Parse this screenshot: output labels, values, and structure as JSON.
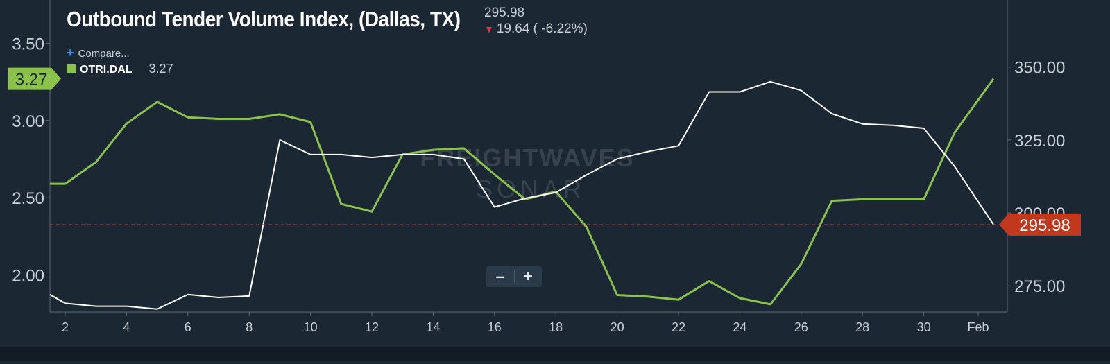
{
  "header": {
    "title": "Outbound Tender Volume Index, (Dallas, TX)",
    "value": "295.98",
    "change": "19.64 ( -6.22%)",
    "change_arrow_icon": "arrow-down-icon",
    "compare_label": "Compare...",
    "compare_icon": "plus-icon"
  },
  "legend": {
    "symbol": "OTRI.DAL",
    "value": "3.27",
    "color": "#8bc34a"
  },
  "watermark": {
    "line1": "FREIGHTWAVES",
    "line2": "SONAR"
  },
  "zoom": {
    "minus": "–",
    "plus": "+"
  },
  "colors": {
    "background": "#1b2733",
    "series_otri": "#8bc34a",
    "series_otvi": "#ffffff",
    "current_value_marker": "#c1381c",
    "reference_line": "#b33a2a"
  },
  "chart_data": {
    "type": "line",
    "x_tick_labels": [
      "2",
      "4",
      "6",
      "8",
      "10",
      "12",
      "14",
      "16",
      "18",
      "20",
      "22",
      "24",
      "26",
      "28",
      "30",
      "Feb"
    ],
    "y_left": {
      "ticks": [
        "2.00",
        "2.50",
        "3.00",
        "3.50"
      ],
      "range": [
        1.76,
        3.78
      ]
    },
    "y_right": {
      "ticks": [
        "275.00",
        "300.00",
        "325.00",
        "350.00"
      ],
      "range": [
        266,
        373
      ]
    },
    "current_marker_left": "3.27",
    "current_marker_right": "295.98",
    "series": [
      {
        "name": "OTRI.DAL",
        "axis": "left",
        "x": [
          1.5,
          2,
          3,
          4,
          5,
          6,
          7,
          8,
          9,
          10,
          11,
          12,
          13,
          14,
          15,
          16,
          17,
          18,
          19,
          20,
          21,
          22,
          23,
          24,
          25,
          26,
          27,
          28,
          29,
          30,
          31,
          32
        ],
        "values": [
          2.59,
          2.59,
          2.73,
          2.98,
          3.12,
          3.02,
          3.01,
          3.01,
          3.04,
          2.99,
          2.46,
          2.41,
          2.78,
          2.81,
          2.82,
          2.65,
          2.49,
          2.54,
          2.31,
          1.87,
          1.86,
          1.84,
          1.96,
          1.85,
          1.81,
          2.07,
          2.48,
          2.49,
          2.49,
          2.49,
          2.92,
          3.27
        ]
      },
      {
        "axis": "right",
        "x": [
          1.5,
          2,
          3,
          4,
          5,
          6,
          7,
          8,
          9,
          10,
          11,
          12,
          13,
          14,
          15,
          16,
          17,
          18,
          19,
          20,
          21,
          22,
          23,
          24,
          25,
          26,
          27,
          28,
          29,
          30,
          31,
          32
        ],
        "values": [
          272,
          269,
          268,
          268,
          267,
          272,
          271,
          271.5,
          325,
          320,
          320,
          319,
          320,
          320,
          318.5,
          302,
          305,
          307,
          313,
          318.5,
          321,
          323,
          341.5,
          341.5,
          345,
          342,
          334,
          330.5,
          330,
          329,
          316,
          296
        ]
      }
    ]
  }
}
